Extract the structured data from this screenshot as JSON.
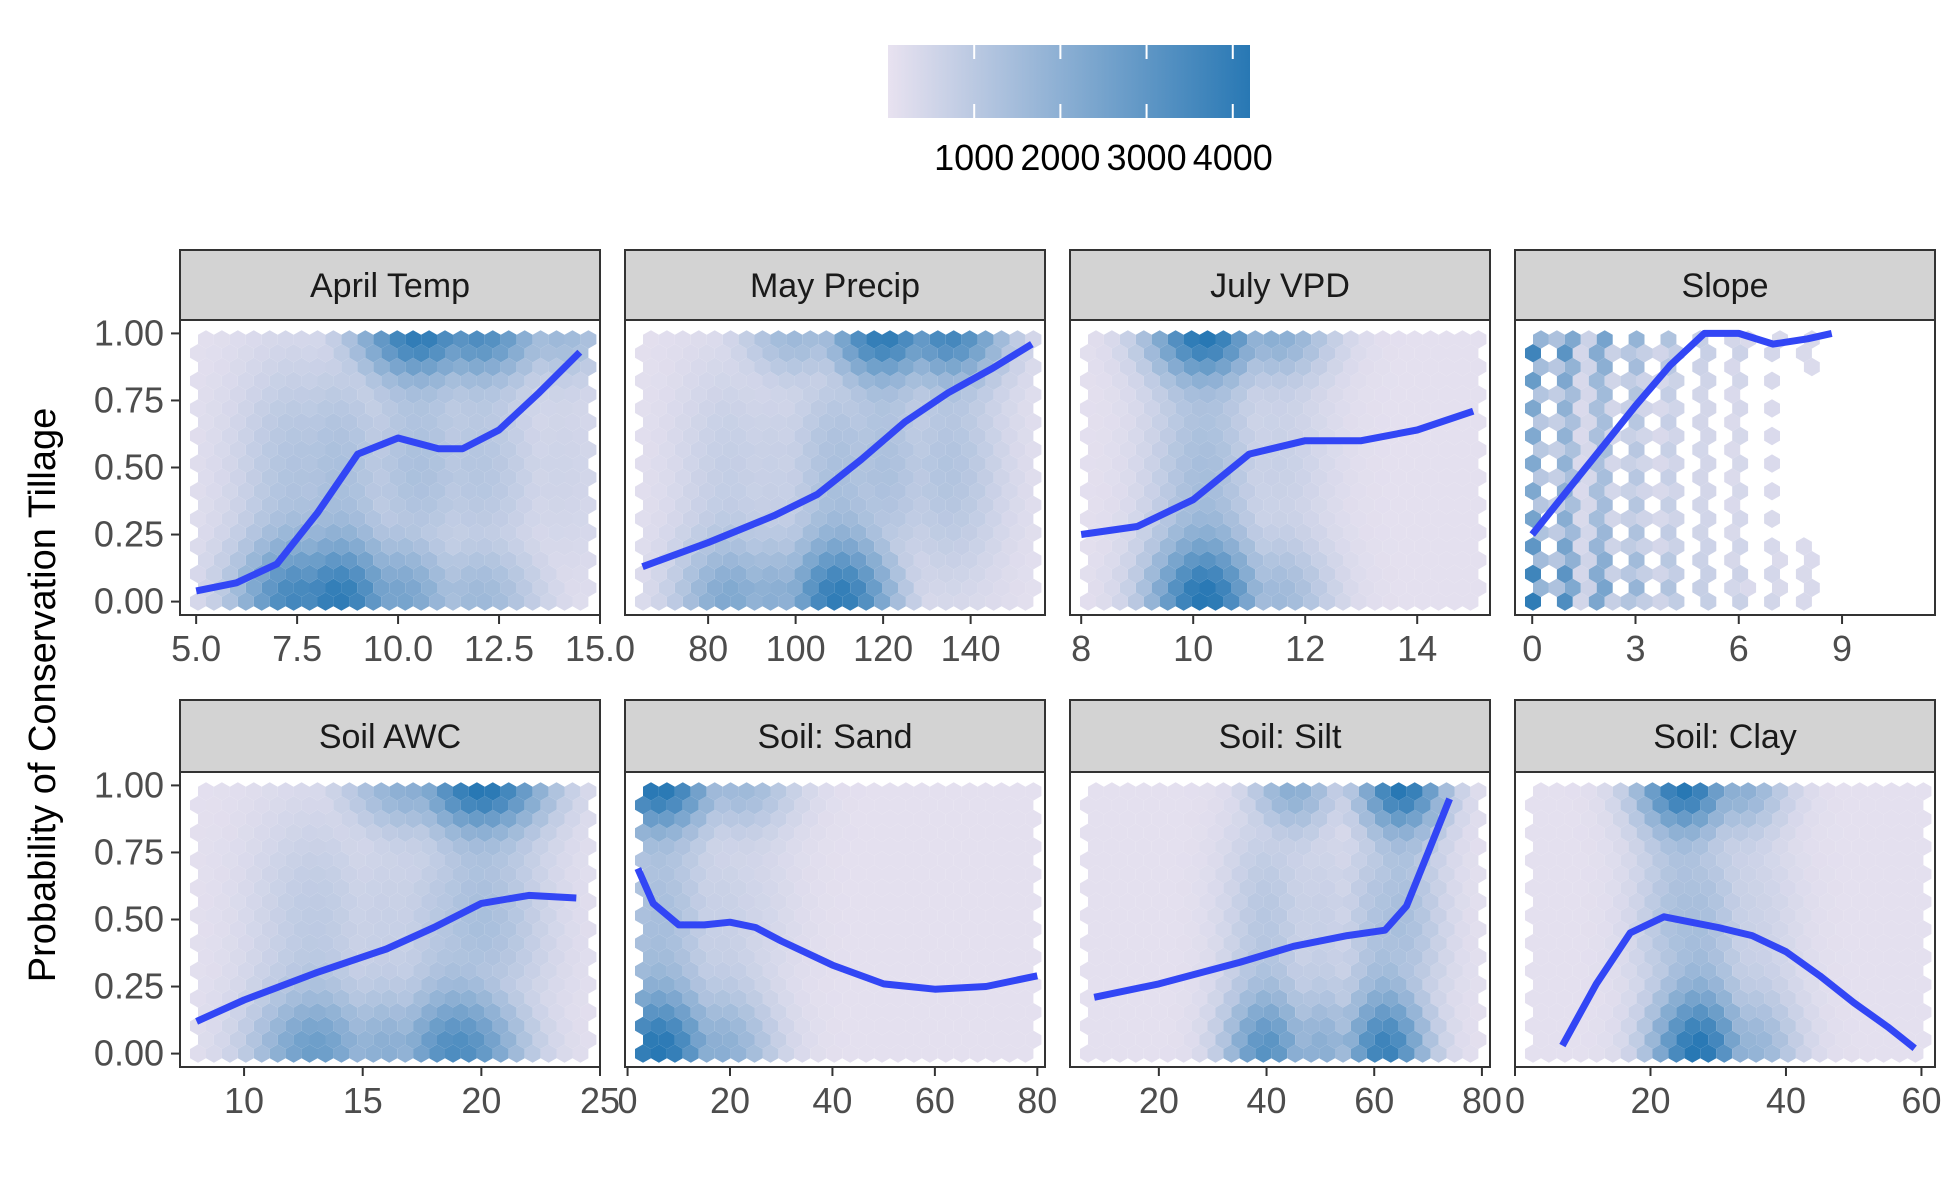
{
  "chart_data": {
    "type": "facet_hexbin_with_smooth",
    "ylabel": "Probability of Conservation Tillage",
    "y_ticks": [
      "0.00",
      "0.25",
      "0.50",
      "0.75",
      "1.00"
    ],
    "ylim": [
      -0.05,
      1.05
    ],
    "legend": {
      "position": "top",
      "colors": [
        "#e8e2f0",
        "#2878b4"
      ],
      "range": [
        0,
        4200
      ],
      "tick_values": [
        1000,
        2000,
        3000,
        4000
      ],
      "tick_labels": [
        "1000",
        "2000",
        "3000",
        "4000"
      ]
    },
    "colors": {
      "smooth_line": "#3246f5",
      "strip_fill": "#d3d3d3",
      "low_count": "#e8e2f0",
      "high_count": "#2878b4"
    },
    "panels": [
      {
        "title": "April Temp",
        "xlim": [
          4.6,
          15.0
        ],
        "x_ticks": [
          5.0,
          7.5,
          10.0,
          12.5,
          15.0
        ],
        "x_tick_labels": [
          "5.0",
          "7.5",
          "10.0",
          "12.5",
          "15.0"
        ],
        "smooth_x": [
          5.0,
          6.0,
          7.0,
          8.0,
          9.0,
          10.0,
          11.0,
          11.6,
          12.5,
          13.5,
          14.5
        ],
        "smooth_y": [
          0.04,
          0.07,
          0.14,
          0.33,
          0.55,
          0.61,
          0.57,
          0.57,
          0.64,
          0.78,
          0.93
        ],
        "density_bottom": [
          [
            7.5,
            0.8
          ],
          [
            8.5,
            0.9
          ],
          [
            10.0,
            0.55
          ],
          [
            12.0,
            0.35
          ]
        ],
        "density_top": [
          [
            10.5,
            0.9
          ],
          [
            12.0,
            0.75
          ],
          [
            14.0,
            0.35
          ]
        ],
        "density_sd": 1.6
      },
      {
        "title": "May Precip",
        "xlim": [
          61,
          157
        ],
        "x_ticks": [
          80,
          100,
          120,
          140
        ],
        "x_tick_labels": [
          "80",
          "100",
          "120",
          "140"
        ],
        "smooth_x": [
          65,
          80,
          95,
          105,
          115,
          125,
          135,
          145,
          154
        ],
        "smooth_y": [
          0.13,
          0.22,
          0.32,
          0.4,
          0.53,
          0.67,
          0.78,
          0.87,
          0.96
        ],
        "density_bottom": [
          [
            85,
            0.5
          ],
          [
            110,
            0.9
          ],
          [
            95,
            0.45
          ]
        ],
        "density_top": [
          [
            120,
            0.9
          ],
          [
            135,
            0.8
          ],
          [
            100,
            0.35
          ]
        ],
        "density_sd": 13
      },
      {
        "title": "July VPD",
        "xlim": [
          7.8,
          15.3
        ],
        "x_ticks": [
          8,
          10,
          12,
          14
        ],
        "x_tick_labels": [
          "8",
          "10",
          "12",
          "14"
        ],
        "smooth_x": [
          8.0,
          9.0,
          10.0,
          11.0,
          12.0,
          13.0,
          14.0,
          15.0
        ],
        "smooth_y": [
          0.25,
          0.28,
          0.38,
          0.55,
          0.6,
          0.6,
          0.64,
          0.71
        ],
        "density_bottom": [
          [
            10.2,
            0.95
          ],
          [
            11.5,
            0.35
          ]
        ],
        "density_top": [
          [
            10.2,
            0.95
          ],
          [
            11.5,
            0.45
          ]
        ],
        "density_sd": 1.0
      },
      {
        "title": "Slope",
        "xlim": [
          -0.5,
          11.7
        ],
        "x_ticks": [
          0,
          3,
          6,
          9
        ],
        "x_tick_labels": [
          "0",
          "3",
          "6",
          "9"
        ],
        "smooth_x": [
          0.0,
          1.0,
          2.0,
          3.0,
          4.0,
          5.0,
          5.5,
          6.0,
          7.0,
          8.0,
          8.7
        ],
        "smooth_y": [
          0.25,
          0.41,
          0.57,
          0.73,
          0.88,
          1.0,
          1.0,
          1.0,
          0.96,
          0.98,
          1.0
        ],
        "density_columns": [
          [
            0,
            1.0
          ],
          [
            1,
            0.85
          ],
          [
            2,
            0.7
          ],
          [
            3,
            0.45
          ],
          [
            4,
            0.3
          ],
          [
            5,
            0.2
          ],
          [
            6,
            0.15
          ],
          [
            7,
            0.1
          ],
          [
            8,
            0.08
          ]
        ],
        "density_sd": 2.5
      },
      {
        "title": "Soil AWC",
        "xlim": [
          7.3,
          25.0
        ],
        "x_ticks": [
          10,
          15,
          20,
          25
        ],
        "x_tick_labels": [
          "10",
          "15",
          "20",
          "25"
        ],
        "smooth_x": [
          8,
          10,
          13,
          16,
          18,
          20,
          22,
          24
        ],
        "smooth_y": [
          0.12,
          0.2,
          0.3,
          0.39,
          0.47,
          0.56,
          0.59,
          0.58
        ],
        "density_bottom": [
          [
            13,
            0.6
          ],
          [
            19,
            0.75
          ],
          [
            16,
            0.45
          ]
        ],
        "density_top": [
          [
            20,
            0.95
          ],
          [
            17,
            0.45
          ]
        ],
        "density_sd": 2.8
      },
      {
        "title": "Soil: Sand",
        "xlim": [
          -0.5,
          81.5
        ],
        "x_ticks": [
          0,
          20,
          40,
          60,
          80
        ],
        "x_tick_labels": [
          "0",
          "20",
          "40",
          "60",
          "80"
        ],
        "smooth_x": [
          2,
          5,
          10,
          15,
          20,
          25,
          30,
          40,
          50,
          60,
          70,
          80
        ],
        "smooth_y": [
          0.69,
          0.56,
          0.48,
          0.48,
          0.49,
          0.47,
          0.42,
          0.33,
          0.26,
          0.24,
          0.25,
          0.29
        ],
        "density_bottom": [
          [
            6,
            0.95
          ],
          [
            18,
            0.45
          ]
        ],
        "density_top": [
          [
            6,
            0.95
          ],
          [
            22,
            0.35
          ]
        ],
        "density_sd": 11
      },
      {
        "title": "Soil: Silt",
        "xlim": [
          3.5,
          81.5
        ],
        "x_ticks": [
          20,
          40,
          60,
          80
        ],
        "x_tick_labels": [
          "20",
          "40",
          "60",
          "80"
        ],
        "smooth_x": [
          8,
          20,
          35,
          45,
          55,
          62,
          66,
          70,
          74
        ],
        "smooth_y": [
          0.21,
          0.26,
          0.34,
          0.4,
          0.44,
          0.46,
          0.55,
          0.75,
          0.95
        ],
        "density_bottom": [
          [
            40,
            0.7
          ],
          [
            62,
            0.85
          ],
          [
            50,
            0.45
          ]
        ],
        "density_top": [
          [
            65,
            0.95
          ],
          [
            45,
            0.45
          ]
        ],
        "density_sd": 8
      },
      {
        "title": "Soil: Clay",
        "xlim": [
          0.0,
          62.0
        ],
        "x_ticks": [
          0,
          20,
          40,
          60
        ],
        "x_tick_labels": [
          "0",
          "20",
          "40",
          "60"
        ],
        "smooth_x": [
          7,
          12,
          17,
          22,
          26,
          30,
          35,
          40,
          45,
          50,
          55,
          59
        ],
        "smooth_y": [
          0.03,
          0.26,
          0.45,
          0.51,
          0.49,
          0.47,
          0.44,
          0.38,
          0.29,
          0.19,
          0.1,
          0.02
        ],
        "density_bottom": [
          [
            27,
            0.95
          ],
          [
            35,
            0.4
          ]
        ],
        "density_top": [
          [
            25,
            0.95
          ],
          [
            33,
            0.45
          ]
        ],
        "density_sd": 7
      }
    ]
  }
}
